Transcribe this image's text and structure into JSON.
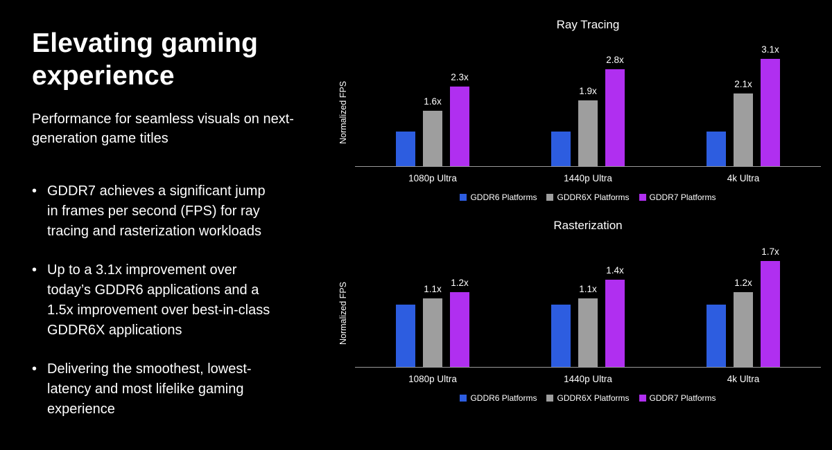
{
  "left": {
    "title": "Elevating gaming experience",
    "subtitle": "Performance for seamless visuals on next-generation game titles",
    "bullet_glyph": "•",
    "bullets": [
      "GDDR7 achieves a significant jump in frames per second (FPS) for ray tracing and rasterization workloads",
      "Up to a 3.1x improvement over today’s GDDR6 applications and a 1.5x improvement over best-in-class GDDR6X applications",
      "Delivering the smoothest, lowest-latency and most lifelike gaming experience"
    ]
  },
  "colors": {
    "background": "#000000",
    "text": "#ffffff",
    "axis": "#9a9a9a",
    "gddr6": "#2d5de0",
    "gddr6x": "#9e9e9e",
    "gddr7": "#b02ff0"
  },
  "chart_data": [
    {
      "type": "bar",
      "title": "Ray Tracing",
      "xlabel": "",
      "ylabel": "Normalized FPS",
      "categories": [
        "1080p Ultra",
        "1440p Ultra",
        "4k Ultra"
      ],
      "series": [
        {
          "name": "GDDR6 Platforms",
          "key": "gddr6",
          "color": "#2d5de0",
          "values": [
            1.0,
            1.0,
            1.0
          ],
          "labels": [
            "",
            "",
            ""
          ]
        },
        {
          "name": "GDDR6X Platforms",
          "key": "gddr6x",
          "color": "#9e9e9e",
          "values": [
            1.6,
            1.9,
            2.1
          ],
          "labels": [
            "1.6x",
            "1.9x",
            "2.1x"
          ]
        },
        {
          "name": "GDDR7 Platforms",
          "key": "gddr7",
          "color": "#b02ff0",
          "values": [
            2.3,
            2.8,
            3.1
          ],
          "labels": [
            "2.3x",
            "2.8x",
            "3.1x"
          ]
        }
      ],
      "ylim": [
        0,
        3.6
      ],
      "grid": false,
      "legend_position": "bottom"
    },
    {
      "type": "bar",
      "title": "Rasterization",
      "xlabel": "",
      "ylabel": "Normalized FPS",
      "categories": [
        "1080p Ultra",
        "1440p Ultra",
        "4k Ultra"
      ],
      "series": [
        {
          "name": "GDDR6 Platforms",
          "key": "gddr6",
          "color": "#2d5de0",
          "values": [
            1.0,
            1.0,
            1.0
          ],
          "labels": [
            "",
            "",
            ""
          ]
        },
        {
          "name": "GDDR6X Platforms",
          "key": "gddr6x",
          "color": "#9e9e9e",
          "values": [
            1.1,
            1.1,
            1.2
          ],
          "labels": [
            "1.1x",
            "1.1x",
            "1.2x"
          ]
        },
        {
          "name": "GDDR7 Platforms",
          "key": "gddr7",
          "color": "#b02ff0",
          "values": [
            1.2,
            1.4,
            1.7
          ],
          "labels": [
            "1.2x",
            "1.4x",
            "1.7x"
          ]
        }
      ],
      "ylim": [
        0,
        2.0
      ],
      "grid": false,
      "legend_position": "bottom"
    }
  ]
}
